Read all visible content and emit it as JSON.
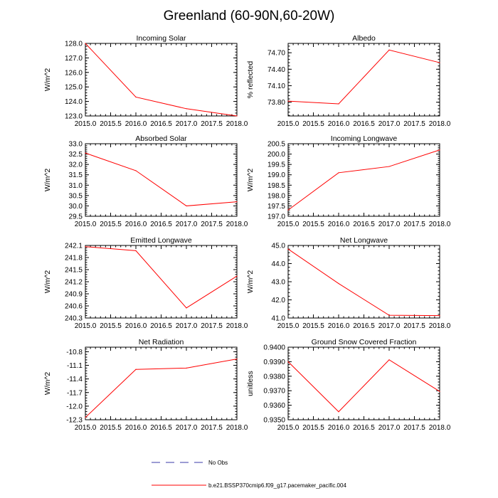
{
  "title": "Greenland (60-90N,60-20W)",
  "legend": {
    "obs_label": "No Obs",
    "obs_color": "#3a3aa8",
    "model_label": "b.e21.BSSP370cmip6.f09_g17.pacemaker_pacific.004",
    "model_color": "#ff0000"
  },
  "chart_data": [
    {
      "type": "line",
      "title": "Incoming Solar",
      "ylabel": "W/m^2",
      "xlabel": "",
      "x": [
        2015.0,
        2016.0,
        2017.0,
        2018.0
      ],
      "xlim": [
        2015.0,
        2018.0
      ],
      "xticks": [
        "2015.0",
        "2015.5",
        "2016.0",
        "2016.5",
        "2017.0",
        "2017.5",
        "2018.0"
      ],
      "ylim": [
        123.0,
        128.0
      ],
      "yticks": [
        "123.0",
        "124.0",
        "125.0",
        "126.0",
        "127.0",
        "128.0"
      ],
      "series": [
        {
          "name": "b.e21.BSSP370cmip6.f09_g17.pacemaker_pacific.004",
          "values": [
            128.0,
            124.3,
            123.5,
            123.0
          ]
        }
      ]
    },
    {
      "type": "line",
      "title": "Albedo",
      "ylabel": "% reflected",
      "xlabel": "",
      "x": [
        2015.0,
        2016.0,
        2017.0,
        2018.0
      ],
      "xlim": [
        2015.0,
        2018.0
      ],
      "xticks": [
        "2015.0",
        "2015.5",
        "2016.0",
        "2016.5",
        "2017.0",
        "2017.5",
        "2018.0"
      ],
      "ylim": [
        73.55,
        74.87
      ],
      "yticks": [
        "73.80",
        "74.10",
        "74.40",
        "74.70"
      ],
      "series": [
        {
          "name": "b.e21.BSSP370cmip6.f09_g17.pacemaker_pacific.004",
          "values": [
            73.82,
            73.77,
            74.75,
            74.52
          ]
        }
      ]
    },
    {
      "type": "line",
      "title": "Absorbed Solar",
      "ylabel": "W/m^2",
      "xlabel": "",
      "x": [
        2015.0,
        2016.0,
        2017.0,
        2018.0
      ],
      "xlim": [
        2015.0,
        2018.0
      ],
      "xticks": [
        "2015.0",
        "2015.5",
        "2016.0",
        "2016.5",
        "2017.0",
        "2017.5",
        "2018.0"
      ],
      "ylim": [
        29.5,
        33.0
      ],
      "yticks": [
        "29.5",
        "30.0",
        "30.5",
        "31.0",
        "31.5",
        "32.0",
        "32.5",
        "33.0"
      ],
      "series": [
        {
          "name": "b.e21.BSSP370cmip6.f09_g17.pacemaker_pacific.004",
          "values": [
            32.55,
            31.7,
            30.0,
            30.2
          ]
        }
      ]
    },
    {
      "type": "line",
      "title": "Incoming Longwave",
      "ylabel": "W/m^2",
      "xlabel": "",
      "x": [
        2015.0,
        2016.0,
        2017.0,
        2018.0
      ],
      "xlim": [
        2015.0,
        2018.0
      ],
      "xticks": [
        "2015.0",
        "2015.5",
        "2016.0",
        "2016.5",
        "2017.0",
        "2017.5",
        "2018.0"
      ],
      "ylim": [
        197.0,
        200.5
      ],
      "yticks": [
        "197.0",
        "197.5",
        "198.0",
        "198.5",
        "199.0",
        "199.5",
        "200.0",
        "200.5"
      ],
      "series": [
        {
          "name": "b.e21.BSSP370cmip6.f09_g17.pacemaker_pacific.004",
          "values": [
            197.3,
            199.1,
            199.4,
            200.2
          ]
        }
      ]
    },
    {
      "type": "line",
      "title": "Emitted Longwave",
      "ylabel": "W/m^2",
      "xlabel": "",
      "x": [
        2015.0,
        2016.0,
        2017.0,
        2018.0
      ],
      "xlim": [
        2015.0,
        2018.0
      ],
      "xticks": [
        "2015.0",
        "2015.5",
        "2016.0",
        "2016.5",
        "2017.0",
        "2017.5",
        "2018.0"
      ],
      "ylim": [
        240.3,
        242.1
      ],
      "yticks": [
        "240.3",
        "240.6",
        "240.9",
        "241.2",
        "241.5",
        "241.8",
        "242.1"
      ],
      "series": [
        {
          "name": "b.e21.BSSP370cmip6.f09_g17.pacemaker_pacific.004",
          "values": [
            242.07,
            241.97,
            240.55,
            241.34
          ]
        }
      ]
    },
    {
      "type": "line",
      "title": "Net Longwave",
      "ylabel": "W/m^2",
      "xlabel": "",
      "x": [
        2015.0,
        2016.0,
        2017.0,
        2018.0
      ],
      "xlim": [
        2015.0,
        2018.0
      ],
      "xticks": [
        "2015.0",
        "2015.5",
        "2016.0",
        "2016.5",
        "2017.0",
        "2017.5",
        "2018.0"
      ],
      "ylim": [
        41.0,
        45.0
      ],
      "yticks": [
        "41.0",
        "42.0",
        "43.0",
        "44.0",
        "45.0"
      ],
      "series": [
        {
          "name": "b.e21.BSSP370cmip6.f09_g17.pacemaker_pacific.004",
          "values": [
            44.8,
            42.9,
            41.15,
            41.13
          ]
        }
      ]
    },
    {
      "type": "line",
      "title": "Net Radiation",
      "ylabel": "W/m^2",
      "xlabel": "",
      "x": [
        2015.0,
        2016.0,
        2017.0,
        2018.0
      ],
      "xlim": [
        2015.0,
        2018.0
      ],
      "xticks": [
        "2015.0",
        "2015.5",
        "2016.0",
        "2016.5",
        "2017.0",
        "2017.5",
        "2018.0"
      ],
      "ylim": [
        -12.3,
        -10.7
      ],
      "yticks": [
        "-12.3",
        "-12.0",
        "-11.7",
        "-11.4",
        "-11.1",
        "-10.8"
      ],
      "series": [
        {
          "name": "b.e21.BSSP370cmip6.f09_g17.pacemaker_pacific.004",
          "values": [
            -12.25,
            -11.19,
            -11.16,
            -10.96
          ]
        }
      ]
    },
    {
      "type": "line",
      "title": "Ground Snow Covered Fraction",
      "ylabel": "unitless",
      "xlabel": "",
      "x": [
        2015.0,
        2016.0,
        2017.0,
        2018.0
      ],
      "xlim": [
        2015.0,
        2018.0
      ],
      "xticks": [
        "2015.0",
        "2015.5",
        "2016.0",
        "2016.5",
        "2017.0",
        "2017.5",
        "2018.0"
      ],
      "ylim": [
        0.935,
        0.94
      ],
      "yticks": [
        "0.9350",
        "0.9360",
        "0.9370",
        "0.9380",
        "0.9390",
        "0.9400"
      ],
      "series": [
        {
          "name": "b.e21.BSSP370cmip6.f09_g17.pacemaker_pacific.004",
          "values": [
            0.939,
            0.93555,
            0.93913,
            0.93695
          ]
        }
      ]
    }
  ]
}
